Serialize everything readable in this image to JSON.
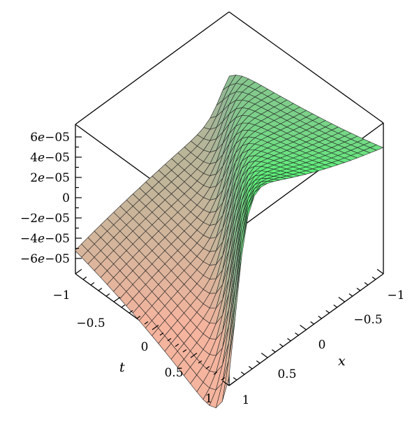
{
  "chart_data": {
    "type": "surface3d",
    "title": "",
    "x_axis": {
      "label": "x",
      "range": [
        -1,
        1
      ],
      "tick_labels": [
        "−1",
        "−0.5",
        "0",
        "0.5",
        "1"
      ]
    },
    "t_axis": {
      "label": "t",
      "range": [
        -1,
        1
      ],
      "tick_labels": [
        "−1",
        "−0.5",
        "0",
        "0.5",
        "1"
      ]
    },
    "z_axis": {
      "label": "",
      "range": [
        -6e-05,
        6e-05
      ],
      "tick_labels": [
        {
          "mant": "6",
          "exp": "−05"
        },
        {
          "mant": "4",
          "exp": "−05"
        },
        {
          "mant": "2",
          "exp": "−05"
        },
        {
          "mant": "0",
          "exp": ""
        },
        {
          "mant": "−2",
          "exp": "−05"
        },
        {
          "mant": "−4",
          "exp": "−05"
        },
        {
          "mant": "−6",
          "exp": "−05"
        }
      ]
    },
    "surface": {
      "shape": "travelling wave surface u(x,t)",
      "color_low": "#f4b49e",
      "color_mid": "#9fb89a",
      "color_high": "#5ef07a",
      "grid_resolution": 24
    }
  }
}
